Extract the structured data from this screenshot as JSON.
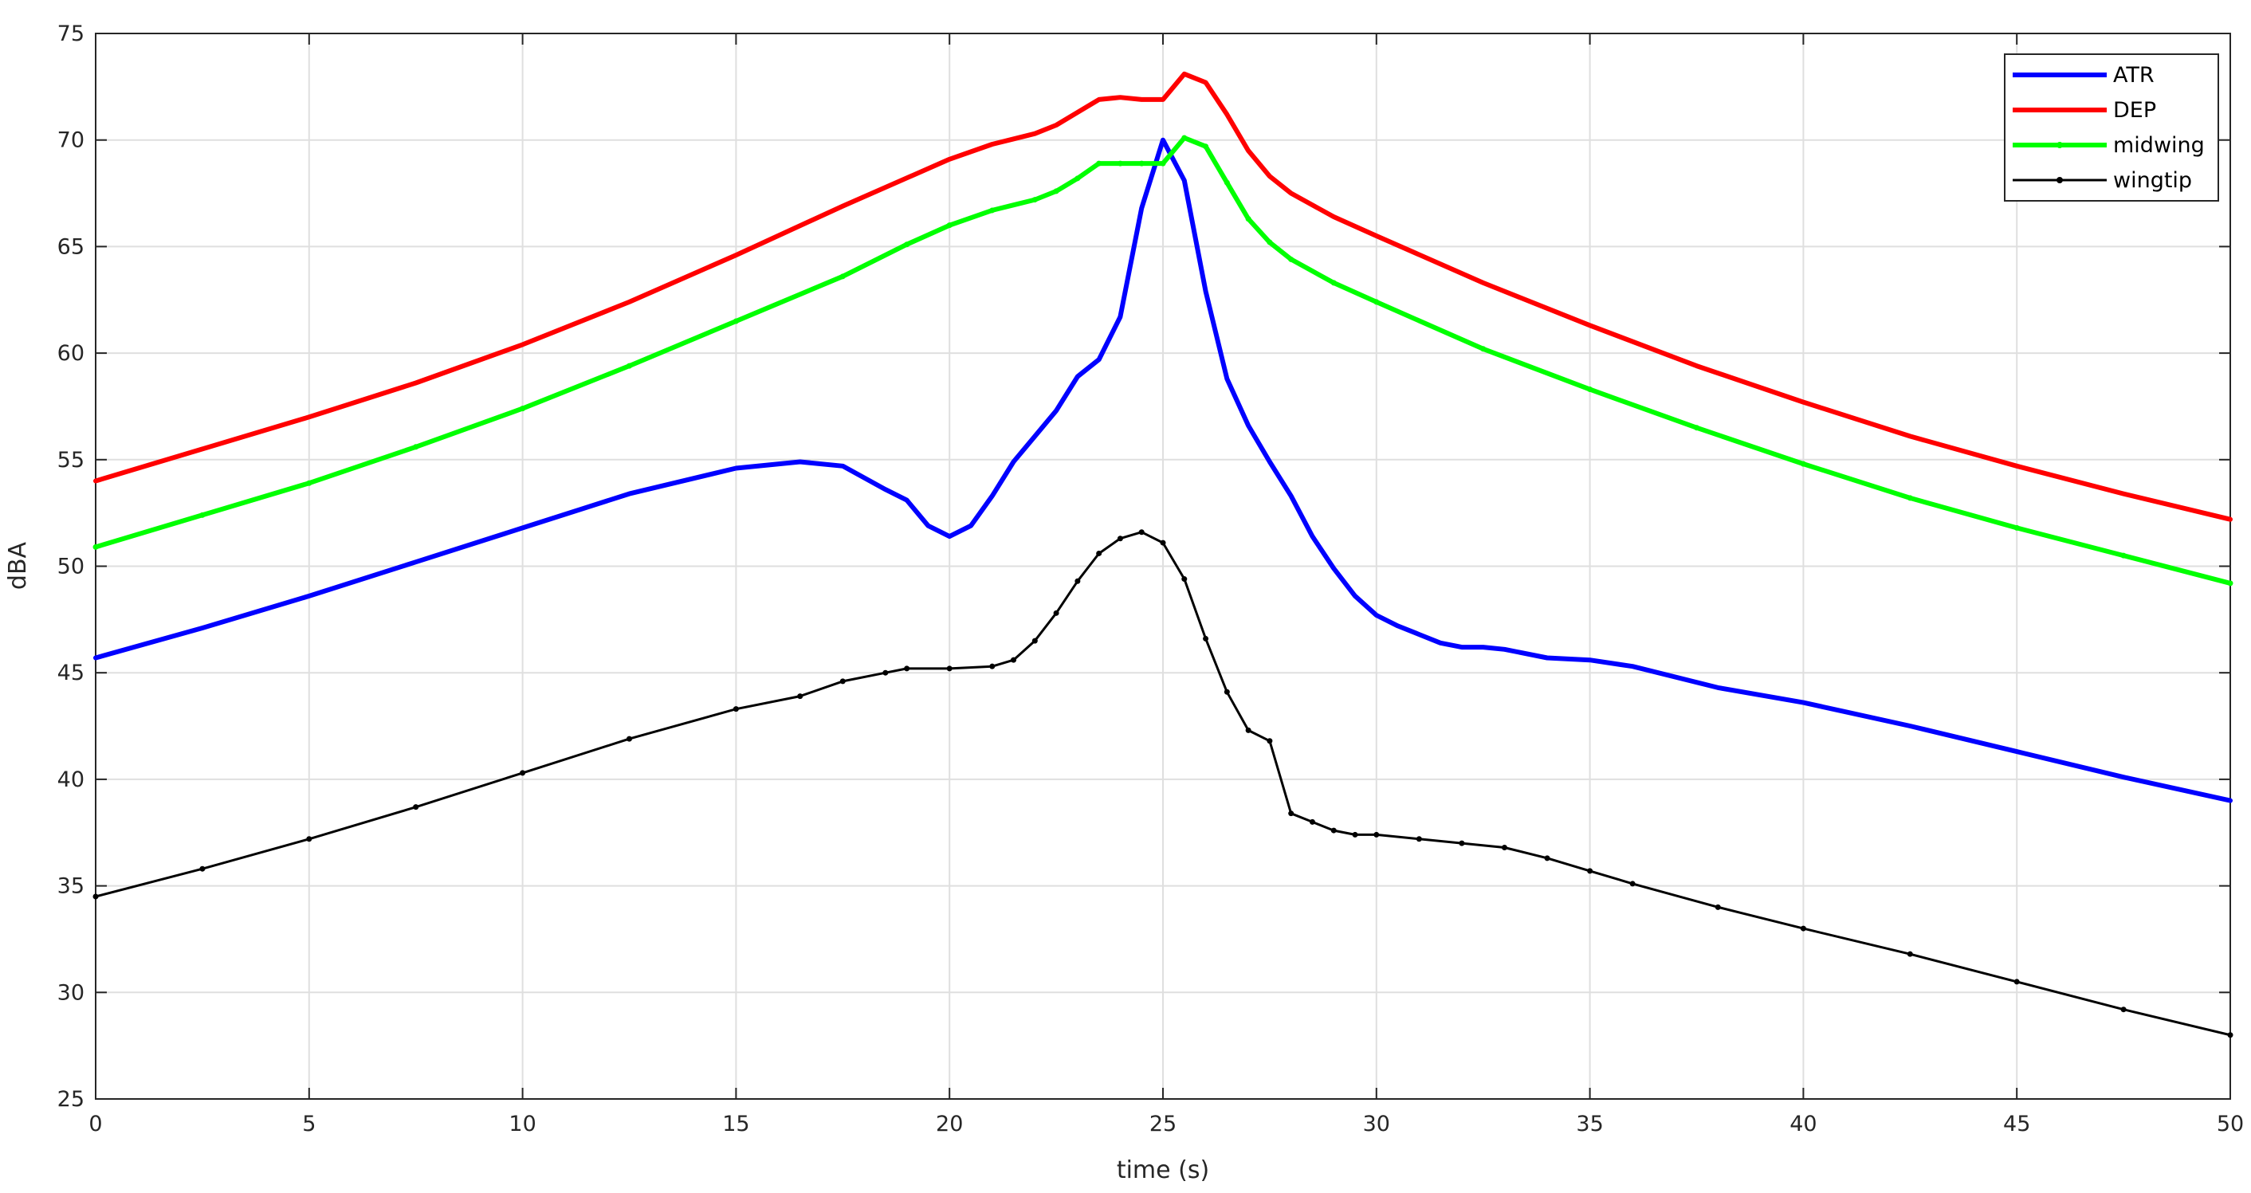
{
  "chart_data": {
    "type": "line",
    "title": "",
    "xlabel": "time (s)",
    "ylabel": "dBA",
    "xlim": [
      0,
      50
    ],
    "ylim": [
      25,
      75
    ],
    "xticks": [
      0,
      5,
      10,
      15,
      20,
      25,
      30,
      35,
      40,
      45,
      50
    ],
    "yticks": [
      25,
      30,
      35,
      40,
      45,
      50,
      55,
      60,
      65,
      70,
      75
    ],
    "grid": true,
    "legend_position": "top-right",
    "series": [
      {
        "name": "ATR",
        "color": "#0000ff",
        "marker": "none",
        "x": [
          0,
          2.5,
          5,
          7.5,
          10,
          12.5,
          15,
          16.5,
          17.5,
          18.5,
          19,
          19.5,
          20,
          20.5,
          21,
          21.5,
          22,
          22.5,
          23,
          23.5,
          24,
          24.5,
          25,
          25.5,
          26,
          26.5,
          27,
          27.5,
          28,
          28.5,
          29,
          29.5,
          30,
          30.5,
          31,
          31.5,
          32,
          32.5,
          33,
          34,
          35,
          36,
          38,
          40,
          42.5,
          45,
          47.5,
          50
        ],
        "y": [
          45.7,
          47.1,
          48.6,
          50.2,
          51.8,
          53.4,
          54.6,
          54.9,
          54.7,
          53.6,
          53.1,
          51.9,
          51.4,
          51.9,
          53.3,
          54.9,
          56.1,
          57.3,
          58.9,
          59.7,
          61.7,
          66.8,
          70.0,
          68.1,
          62.9,
          58.8,
          56.6,
          54.9,
          53.3,
          51.4,
          49.9,
          48.6,
          47.7,
          47.2,
          46.8,
          46.4,
          46.2,
          46.2,
          46.1,
          45.7,
          45.6,
          45.3,
          44.3,
          43.6,
          42.5,
          41.3,
          40.1,
          39.0
        ]
      },
      {
        "name": "DEP",
        "color": "#ff0000",
        "marker": "none",
        "x": [
          0,
          2.5,
          5,
          7.5,
          10,
          12.5,
          15,
          17.5,
          20,
          21,
          22,
          22.5,
          23,
          23.5,
          24,
          24.5,
          25,
          25.5,
          26,
          26.5,
          27,
          27.5,
          28,
          29,
          30,
          32.5,
          35,
          37.5,
          40,
          42.5,
          45,
          47.5,
          50
        ],
        "y": [
          54.0,
          55.5,
          57.0,
          58.6,
          60.4,
          62.4,
          64.6,
          66.9,
          69.1,
          69.8,
          70.3,
          70.7,
          71.3,
          71.9,
          72.0,
          71.9,
          71.9,
          73.1,
          72.7,
          71.2,
          69.5,
          68.3,
          67.5,
          66.4,
          65.5,
          63.3,
          61.3,
          59.4,
          57.7,
          56.1,
          54.7,
          53.4,
          52.2
        ]
      },
      {
        "name": "midwing",
        "color": "#00ff00",
        "marker": "dot",
        "x": [
          0,
          2.5,
          5,
          7.5,
          10,
          12.5,
          15,
          17.5,
          19,
          20,
          21,
          22,
          22.5,
          23,
          23.5,
          24,
          24.5,
          25,
          25.5,
          26,
          26.5,
          27,
          27.5,
          28,
          29,
          30,
          32.5,
          35,
          37.5,
          40,
          42.5,
          45,
          47.5,
          50
        ],
        "y": [
          50.9,
          52.4,
          53.9,
          55.6,
          57.4,
          59.4,
          61.5,
          63.6,
          65.1,
          66.0,
          66.7,
          67.2,
          67.6,
          68.2,
          68.9,
          68.9,
          68.9,
          68.9,
          70.1,
          69.7,
          68.0,
          66.3,
          65.2,
          64.4,
          63.3,
          62.4,
          60.2,
          58.3,
          56.5,
          54.8,
          53.2,
          51.8,
          50.5,
          49.2
        ]
      },
      {
        "name": "wingtip",
        "color": "#000000",
        "marker": "dot",
        "x": [
          0,
          2.5,
          5,
          7.5,
          10,
          12.5,
          15,
          16.5,
          17.5,
          18.5,
          19,
          20,
          21,
          21.5,
          22,
          22.5,
          23,
          23.5,
          24,
          24.5,
          25,
          25.5,
          26,
          26.5,
          27,
          27.5,
          28,
          28.5,
          29,
          29.5,
          30,
          31,
          32,
          33,
          34,
          35,
          36,
          38,
          40,
          42.5,
          45,
          47.5,
          50
        ],
        "y": [
          34.5,
          35.8,
          37.2,
          38.7,
          40.3,
          41.9,
          43.3,
          43.9,
          44.6,
          45.0,
          45.2,
          45.2,
          45.3,
          45.6,
          46.5,
          47.8,
          49.3,
          50.6,
          51.3,
          51.6,
          51.1,
          49.4,
          46.6,
          44.1,
          42.3,
          41.8,
          38.4,
          38.0,
          37.6,
          37.4,
          37.4,
          37.2,
          37.0,
          36.8,
          36.3,
          35.7,
          35.1,
          34.0,
          33.0,
          31.8,
          30.5,
          29.2,
          28.0
        ]
      }
    ]
  }
}
